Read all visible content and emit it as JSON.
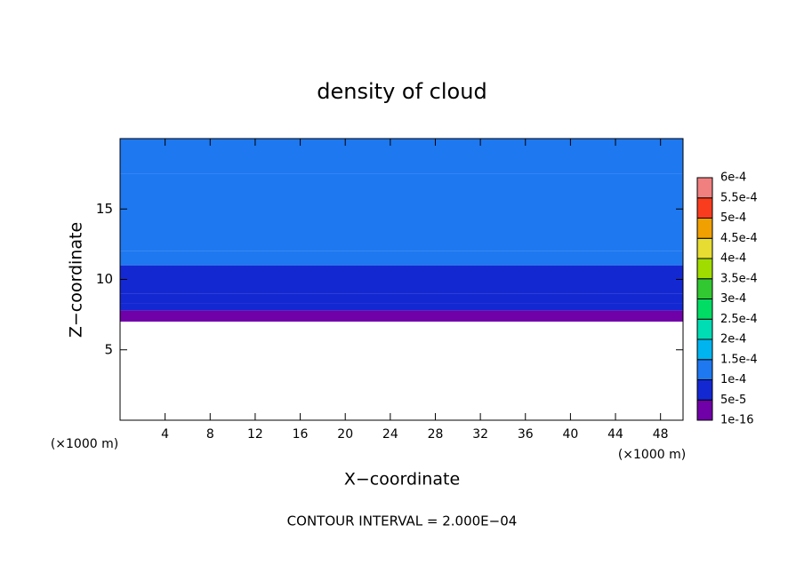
{
  "chart_data": {
    "type": "contour",
    "title": "density of cloud",
    "xlabel": "X−coordinate",
    "ylabel": "Z−coordinate",
    "x_unit": "(×1000 m)",
    "footer": "CONTOUR INTERVAL = 2.000E−04",
    "xlim": [
      0,
      50
    ],
    "ylim": [
      0,
      20
    ],
    "xticks": [
      4,
      8,
      12,
      16,
      20,
      24,
      28,
      32,
      36,
      40,
      44,
      48
    ],
    "yticks": [
      5,
      10,
      15
    ],
    "profile": {
      "z_edges": [
        7,
        7.8,
        8.3,
        9.0,
        10.0,
        11.0,
        12.0,
        17.5,
        20
      ],
      "values": [
        3e-05,
        6e-05,
        7e-05,
        8e-05,
        9e-05,
        0.000105,
        0.00012,
        0.00011
      ]
    },
    "colorbar": {
      "ticks": [
        {
          "value": 1e-16,
          "label": "1e-16"
        },
        {
          "value": 5e-05,
          "label": "5e-5"
        },
        {
          "value": 0.0001,
          "label": "1e-4"
        },
        {
          "value": 0.00015,
          "label": "1.5e-4"
        },
        {
          "value": 0.0002,
          "label": "2e-4"
        },
        {
          "value": 0.00025,
          "label": "2.5e-4"
        },
        {
          "value": 0.0003,
          "label": "3e-4"
        },
        {
          "value": 0.00035,
          "label": "3.5e-4"
        },
        {
          "value": 0.0004,
          "label": "4e-4"
        },
        {
          "value": 0.00045,
          "label": "4.5e-4"
        },
        {
          "value": 0.0005,
          "label": "5e-4"
        },
        {
          "value": 0.00055,
          "label": "5.5e-4"
        },
        {
          "value": 0.0006,
          "label": "6e-4"
        }
      ],
      "colors": [
        "#7000a8",
        "#1428d2",
        "#1e78f0",
        "#00b4f0",
        "#00dcb4",
        "#00dc64",
        "#32c832",
        "#a0dc00",
        "#e6dc32",
        "#f0a000",
        "#fa3c1e",
        "#f08080"
      ]
    }
  }
}
